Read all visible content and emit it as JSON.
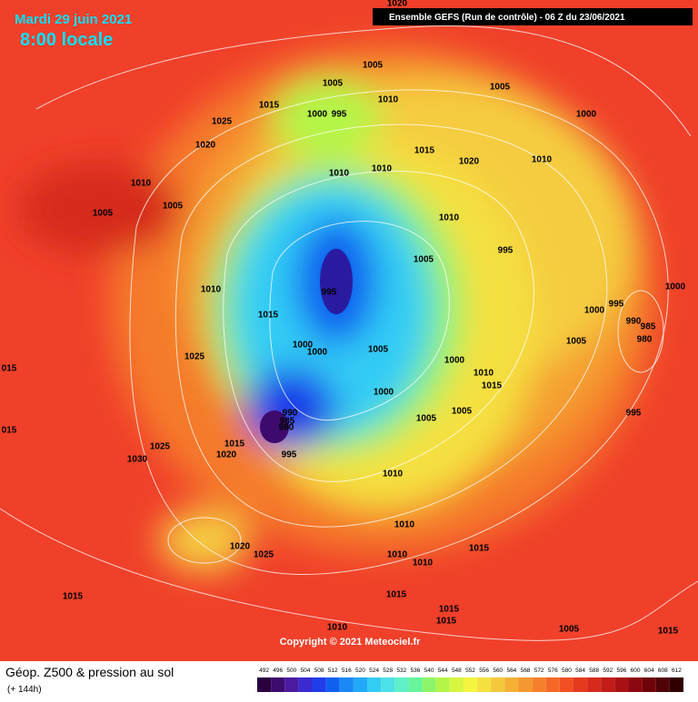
{
  "header": {
    "date": "Mardi 29 juin 2021",
    "time": "8:00 locale",
    "run": "Ensemble GEFS  (Run de contrôle)  -  06 Z du 23/06/2021"
  },
  "map": {
    "copyright": "Copyright © 2021 Meteociel.fr",
    "pressure_labels": [
      "1020",
      "1005",
      "1005",
      "1010",
      "1015",
      "1000",
      "995",
      "1025",
      "1005",
      "1000",
      "1020",
      "1015",
      "1020",
      "1010",
      "1010",
      "1010",
      "1010",
      "1005",
      "1005",
      "1010",
      "995",
      "1005",
      "995",
      "1010",
      "1000",
      "995",
      "1000",
      "990",
      "985",
      "980",
      "1015",
      "1000",
      "1000",
      "1005",
      "1005",
      "1025",
      "1000",
      "1010",
      "1015",
      "015",
      "1000",
      "995",
      "1005",
      "1005",
      "990",
      "985",
      "980",
      "015",
      "1015",
      "1025",
      "1020",
      "995",
      "1030",
      "1010",
      "1010",
      "1020",
      "1025",
      "1015",
      "1010",
      "1010",
      "1015",
      "1015",
      "1015",
      "1015",
      "1010",
      "1005",
      "1015"
    ]
  },
  "legend": {
    "title": "Géop. Z500 & pression au sol",
    "lead": "(+ 144h)",
    "levels": [
      492,
      496,
      500,
      504,
      508,
      512,
      516,
      520,
      524,
      528,
      532,
      536,
      540,
      544,
      548,
      552,
      556,
      560,
      564,
      568,
      572,
      576,
      580,
      584,
      588,
      592,
      596,
      600,
      604,
      608,
      612
    ],
    "colors": [
      "#2a0040",
      "#3d0a6e",
      "#4b1aa0",
      "#3a2bd0",
      "#1f3de8",
      "#1060f0",
      "#1a88f5",
      "#22aaf8",
      "#33ccf5",
      "#4ce0e8",
      "#5ff0c8",
      "#66f59a",
      "#8cf56a",
      "#b4f54a",
      "#d8f540",
      "#f5f540",
      "#f5e040",
      "#f5c83c",
      "#f5b035",
      "#f59830",
      "#f5802c",
      "#f56828",
      "#f25024",
      "#e63a20",
      "#d62a1c",
      "#c21c18",
      "#a81014",
      "#8c0810",
      "#6e040a",
      "#500206",
      "#300000"
    ]
  }
}
